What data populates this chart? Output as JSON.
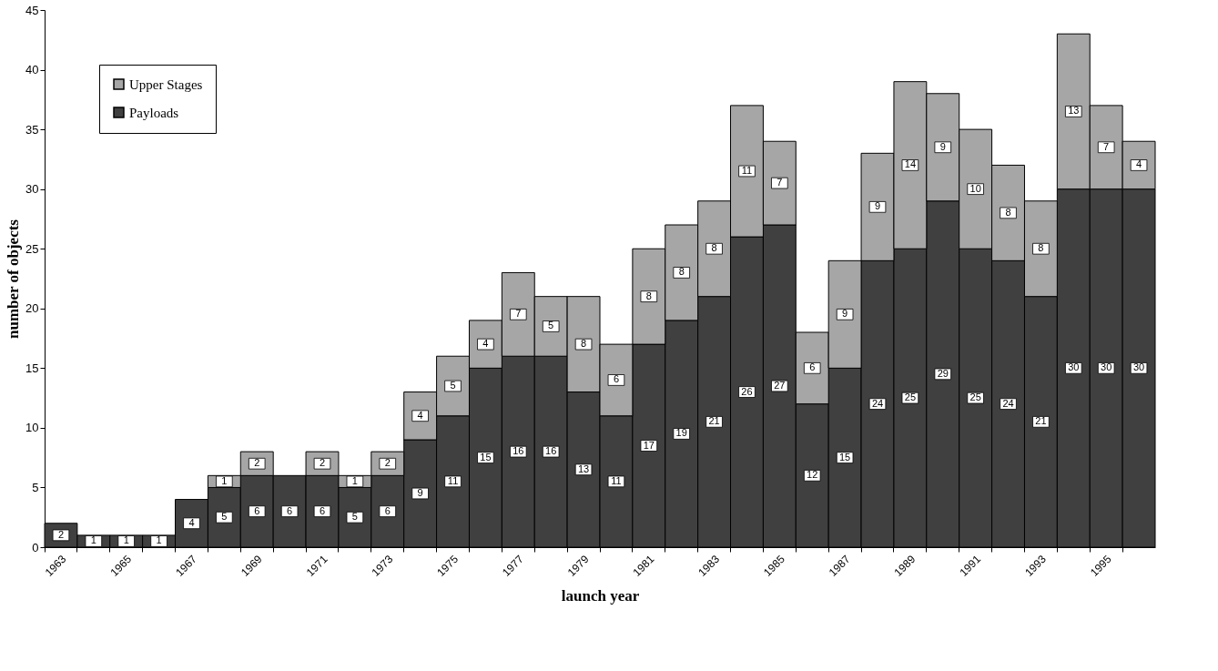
{
  "chart_data": {
    "type": "bar",
    "stacked": true,
    "xlabel": "launch year",
    "ylabel": "number of objects",
    "categories": [
      "1963",
      null,
      "1965",
      null,
      "1967",
      null,
      "1969",
      null,
      "1971",
      null,
      "1973",
      null,
      "1975",
      null,
      "1977",
      null,
      "1979",
      null,
      "1981",
      null,
      "1983",
      null,
      "1985",
      null,
      "1987",
      null,
      "1989",
      null,
      "1991",
      null,
      "1993",
      null,
      "1995",
      null
    ],
    "series": [
      {
        "name": "Payloads",
        "color": "#404040",
        "values": [
          2,
          1,
          1,
          1,
          4,
          5,
          6,
          6,
          6,
          5,
          6,
          9,
          11,
          15,
          16,
          16,
          13,
          11,
          17,
          19,
          21,
          26,
          27,
          12,
          15,
          24,
          25,
          29,
          25,
          24,
          21,
          30,
          30,
          30
        ]
      },
      {
        "name": "Upper Stages",
        "color": "#a6a6a6",
        "values": [
          null,
          null,
          null,
          null,
          null,
          1,
          2,
          null,
          2,
          1,
          2,
          4,
          5,
          4,
          7,
          5,
          8,
          6,
          8,
          8,
          8,
          11,
          7,
          6,
          9,
          9,
          14,
          9,
          10,
          8,
          8,
          13,
          7,
          4
        ]
      }
    ],
    "ylim": [
      0,
      45
    ],
    "yticks": [
      0,
      5,
      10,
      15,
      20,
      25,
      30,
      35,
      40,
      45
    ],
    "grid": false,
    "legend": "top left",
    "data_labels": true
  }
}
